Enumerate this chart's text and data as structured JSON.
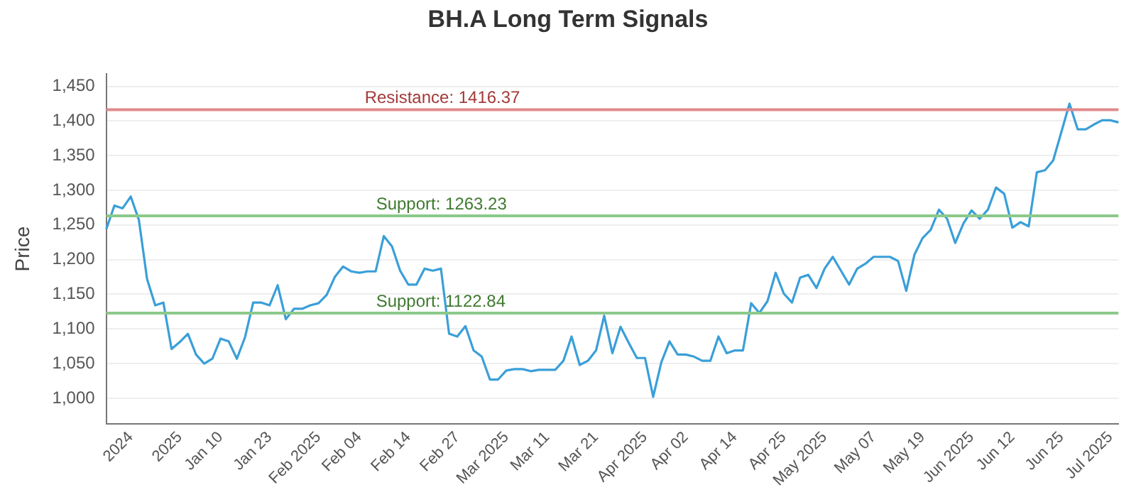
{
  "chart_data": {
    "type": "line",
    "title": "BH.A Long Term Signals",
    "ylabel": "Price",
    "categories": [
      null,
      null,
      null,
      "2024",
      null,
      null,
      null,
      null,
      null,
      "2025",
      null,
      null,
      null,
      null,
      "Jan 10",
      null,
      null,
      null,
      null,
      null,
      "Jan 23",
      null,
      null,
      null,
      null,
      null,
      "Feb 2025",
      null,
      null,
      null,
      null,
      "Feb 04",
      null,
      null,
      null,
      null,
      null,
      "Feb 14",
      null,
      null,
      null,
      null,
      null,
      "Feb 27",
      null,
      null,
      null,
      null,
      null,
      "Mar 2025",
      null,
      null,
      null,
      null,
      "Mar 11",
      null,
      null,
      null,
      null,
      null,
      "Mar 21",
      null,
      null,
      null,
      null,
      null,
      "Apr 2025",
      null,
      null,
      null,
      null,
      "Apr 02",
      null,
      null,
      null,
      null,
      null,
      "Apr 14",
      null,
      null,
      null,
      null,
      null,
      "Apr 25",
      null,
      null,
      null,
      null,
      "May 2025",
      null,
      null,
      null,
      null,
      null,
      "May 07",
      null,
      null,
      null,
      null,
      null,
      "May 19",
      null,
      null,
      null,
      null,
      null,
      "Jun 2025",
      null,
      null,
      null,
      null,
      "Jun 12",
      null,
      null,
      null,
      null,
      null,
      "Jun 25",
      null,
      null,
      null,
      null,
      null,
      "Jul 2025",
      null
    ],
    "series": [
      {
        "color": "#3a9fd8",
        "values": [
          1244,
          1278,
          1274,
          1291,
          1257,
          1172,
          1134,
          1138,
          1071,
          1081,
          1093,
          1063,
          1050,
          1057,
          1086,
          1082,
          1057,
          1088,
          1138,
          1138,
          1134,
          1163,
          1114,
          1129,
          1129,
          1134,
          1137,
          1149,
          1175,
          1190,
          1183,
          1181,
          1183,
          1183,
          1234,
          1219,
          1184,
          1164,
          1164,
          1187,
          1184,
          1187,
          1093,
          1089,
          1104,
          1069,
          1060,
          1027,
          1027,
          1040,
          1042,
          1042,
          1039,
          1041,
          1041,
          1041,
          1054,
          1089,
          1048,
          1054,
          1069,
          1119,
          1065,
          1103,
          1080,
          1058,
          1058,
          1002,
          1052,
          1082,
          1063,
          1063,
          1060,
          1054,
          1054,
          1089,
          1065,
          1069,
          1069,
          1137,
          1123,
          1140,
          1181,
          1151,
          1138,
          1174,
          1178,
          1159,
          1187,
          1204,
          1184,
          1164,
          1187,
          1194,
          1204,
          1204,
          1204,
          1198,
          1155,
          1207,
          1231,
          1243,
          1272,
          1259,
          1224,
          1252,
          1271,
          1259,
          1272,
          1304,
          1295,
          1246,
          1254,
          1248,
          1326,
          1329,
          1343,
          1384,
          1425,
          1388,
          1388,
          1395,
          1401,
          1401,
          1398
        ]
      }
    ],
    "ylim": [
      963,
      1468
    ],
    "yticks": [
      {
        "value": 1000,
        "label": "1,000"
      },
      {
        "value": 1050,
        "label": "1,050"
      },
      {
        "value": 1100,
        "label": "1,100"
      },
      {
        "value": 1150,
        "label": "1,150"
      },
      {
        "value": 1200,
        "label": "1,200"
      },
      {
        "value": 1250,
        "label": "1,250"
      },
      {
        "value": 1300,
        "label": "1,300"
      },
      {
        "value": 1350,
        "label": "1,350"
      },
      {
        "value": 1400,
        "label": "1,400"
      },
      {
        "value": 1450,
        "label": "1,450"
      }
    ],
    "grid": "y",
    "legend": false,
    "marker": "none",
    "line_style": "solid",
    "ref_lines": [
      {
        "axis": "y",
        "value": 1416.37,
        "label": "Resistance: 1416.37",
        "color": "#e08a8a"
      },
      {
        "axis": "y",
        "value": 1263.23,
        "label": "Support: 1263.23",
        "color": "#8cc98a"
      },
      {
        "axis": "y",
        "value": 1122.84,
        "label": "Support: 1122.84",
        "color": "#8cc98a"
      }
    ]
  }
}
